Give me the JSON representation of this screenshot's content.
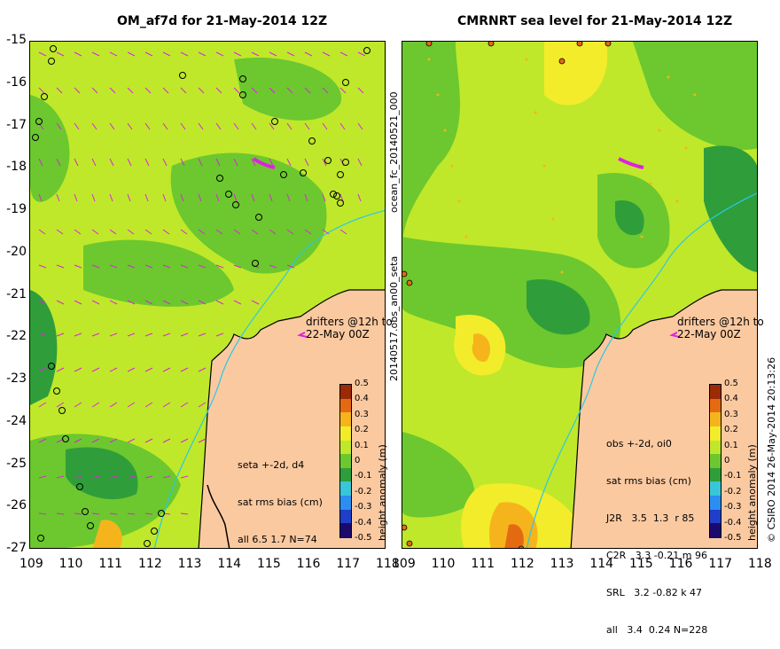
{
  "left_panel": {
    "title": "OM_af7d for 21-May-2014 12Z",
    "drifter_note_line1": "drifters @12h to",
    "drifter_note_line2": "22-May 00Z",
    "stats": [
      "seta +-2d, d4",
      "sat rms bias (cm)",
      "all 6.5 1.7 N=74"
    ],
    "colorbar_label": "height anomaly (m)"
  },
  "right_panel": {
    "title": "CMRNRT sea level  for 21-May-2014 12Z",
    "drifter_note_line1": "drifters @12h to",
    "drifter_note_line2": "22-May 00Z",
    "stats": [
      "obs +-2d, oi0",
      "sat rms bias (cm)",
      "J2R   3.5  1.3  r 85",
      "C2R   3.3 -0.21 m 96",
      "SRL   3.2 -0.82 k 47",
      "all   3.4  0.24 N=228"
    ],
    "colorbar_label": "height anomaly (m)"
  },
  "side_labels": {
    "run_id": "ocean_fc_20140521_000",
    "obs_id": "20140517.obs_an00_seta",
    "credit": "© CSIRO 2014   26-May-2014 20:13:26"
  },
  "axes": {
    "x_ticks": [
      "109",
      "110",
      "111",
      "112",
      "113",
      "114",
      "115",
      "116",
      "117",
      "118"
    ],
    "y_ticks": [
      "-15",
      "-16",
      "-17",
      "-18",
      "-19",
      "-20",
      "-21",
      "-22",
      "-23",
      "-24",
      "-25",
      "-26",
      "-27"
    ],
    "xlim": [
      109,
      118
    ],
    "ylim": [
      -27,
      -15
    ]
  },
  "colorbar": {
    "ticks": [
      "0.5",
      "0.4",
      "0.3",
      "0.2",
      "0.1",
      "0",
      "-0.1",
      "-0.2",
      "-0.3",
      "-0.4",
      "-0.5"
    ],
    "range": [
      -0.5,
      0.5
    ],
    "colors": [
      "#1b0a6e",
      "#1f3fc9",
      "#2b8ef0",
      "#38c6d8",
      "#2f9e3a",
      "#6cc82e",
      "#bfe82a",
      "#f2ec2a",
      "#f6b41c",
      "#e46a12",
      "#9b2b05"
    ]
  },
  "colors": {
    "land": "#fbc9a0",
    "vector": "#e020e0",
    "coast": "#000000",
    "isobath": "#29c8e8"
  }
}
